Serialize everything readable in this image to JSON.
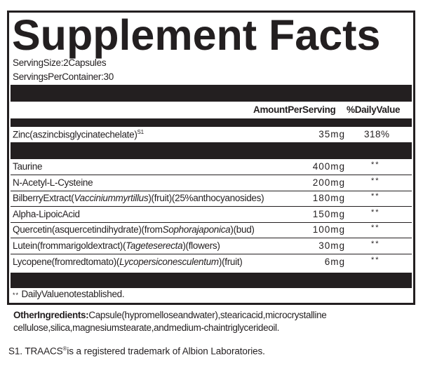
{
  "title": "Supplement Facts",
  "serving_size": "ServingSize:2Capsules",
  "servings_per_container": "ServingsPerContainer:30",
  "header": {
    "amount": "AmountPerServing",
    "daily_value": "%DailyValue"
  },
  "zinc": {
    "name": "Zinc(aszincbisglycinatechelate)",
    "sup": "S1",
    "amount": "35mg",
    "dv": "318%"
  },
  "ingredients": [
    {
      "parts": [
        "Taurine"
      ],
      "amount": "400mg",
      "dv": "**"
    },
    {
      "parts": [
        "N-Acetyl-L-Cysteine"
      ],
      "amount": "200mg",
      "dv": "**"
    },
    {
      "parts": [
        "BilberryExtract(",
        "Vacciniummyrtillus",
        ")(fruit)(25%anthocyanosides)"
      ],
      "amount": "180mg",
      "dv": "**"
    },
    {
      "parts": [
        "Alpha-LipoicAcid"
      ],
      "amount": "150mg",
      "dv": "**"
    },
    {
      "parts": [
        "Quercetin(asquercetindihydrate)(from",
        "Sophorajaponica",
        ")(bud)"
      ],
      "amount": "100mg",
      "dv": "**"
    },
    {
      "parts": [
        "Lutein(frommarigoldextract)(",
        "Tageteserecta",
        ")(flowers)"
      ],
      "amount": "30mg",
      "dv": "**"
    },
    {
      "parts": [
        "Lycopene(fromredtomato)(",
        "Lycopersiconesculentum",
        ")(fruit)"
      ],
      "amount": "6mg",
      "dv": "**"
    }
  ],
  "footnote": {
    "stars": "**",
    "text": " DailyValuenotestablished."
  },
  "other_ingredients": {
    "label": "OtherIngredients:",
    "text": "Capsule(hypromelloseandwater),stearicacid,microcrystalline cellulose,silica,magnesiumstearate,andmedium-chaintriglycerideoil."
  },
  "trademark": {
    "prefix": "S1. TRAACS",
    "reg": "®",
    "text": "is a registered trademark of Albion Laboratories."
  },
  "colors": {
    "ink": "#231f20"
  }
}
